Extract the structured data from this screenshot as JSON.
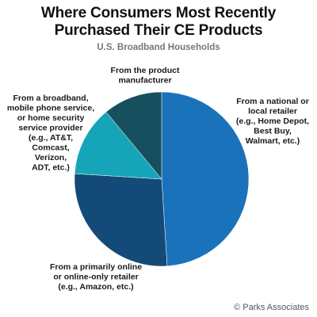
{
  "title_line1": "Where Consumers Most Recently",
  "title_line2": "Purchased Their CE Products",
  "subtitle": "U.S. Broadband Households",
  "copyright": "© Parks Associates",
  "chart_data": {
    "type": "pie",
    "title": "Where Consumers Most Recently Purchased Their CE Products",
    "subtitle": "U.S. Broadband Households",
    "legend": "none",
    "slices": [
      {
        "label": "From a national or local retailer (e.g., Home Depot, Best Buy, Walmart, etc.)",
        "label_lines": [
          "From a national or",
          "local retailer",
          "(e.g., Home Depot,",
          "Best Buy,",
          "Walmart, etc.)"
        ],
        "value": 49,
        "color": "#1a72bb"
      },
      {
        "label": "From a primarily online or online-only retailer (e.g., Amazon, etc.)",
        "label_lines": [
          "From a primarily online",
          "or online-only retailer",
          "(e.g., Amazon, etc.)"
        ],
        "value": 27,
        "color": "#134a78"
      },
      {
        "label": "From a broadband, mobile phone service, or home security service provider (e.g., AT&T, Comcast, Verizon, ADT, etc.)",
        "label_lines": [
          "From a broadband,",
          "mobile phone service,",
          "or home security",
          "service provider",
          "(e.g., AT&T,",
          "Comcast,",
          "Verizon,",
          "ADT, etc.)"
        ],
        "value": 13,
        "color": "#16a5b8"
      },
      {
        "label": "From the product manufacturer",
        "label_lines": [
          "From the product",
          "manufacturer"
        ],
        "value": 11,
        "color": "#16505e"
      }
    ]
  }
}
